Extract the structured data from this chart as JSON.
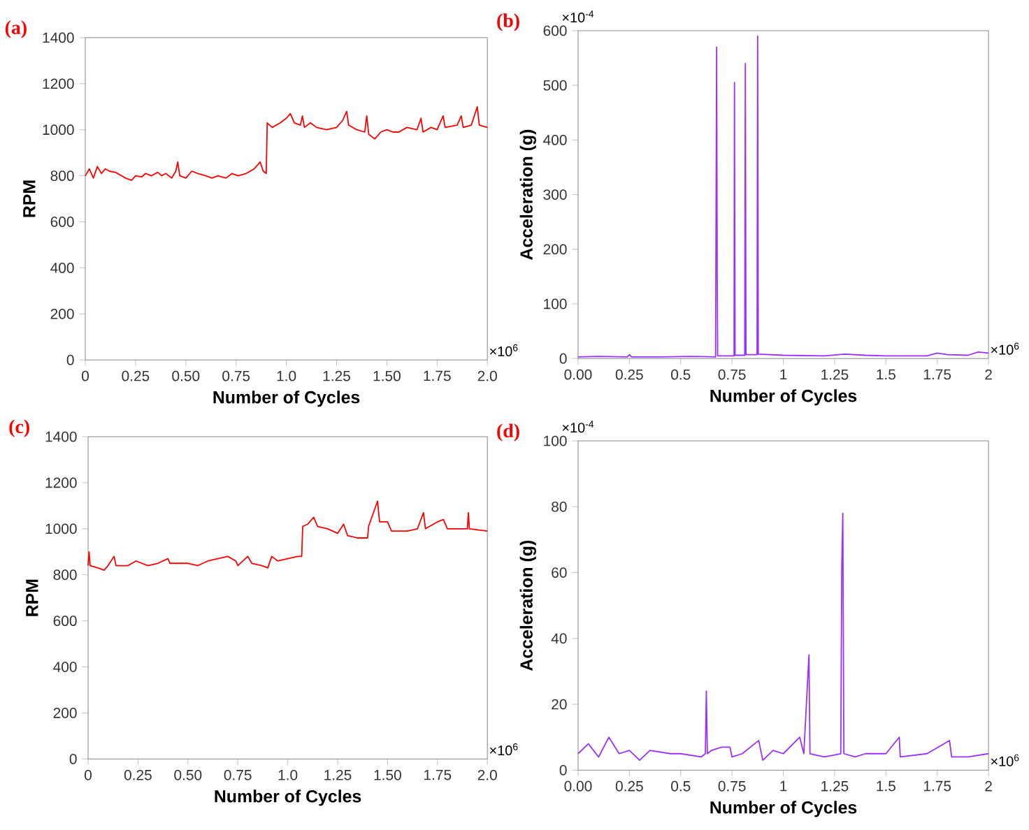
{
  "chart_data": [
    {
      "type": "line",
      "title": "(a)",
      "xlabel": "Number of Cycles",
      "ylabel": "RPM",
      "color": "#ff0000",
      "xlim": [
        0,
        2
      ],
      "xticks": [
        0,
        0.25,
        {
          "value": 0.5,
          "label": "0.50"
        },
        0.75,
        {
          "value": 1,
          "label": "1.0"
        },
        1.25,
        {
          "value": 1.5,
          "label": "1.50"
        },
        1.75,
        {
          "value": 2,
          "label": "2.0"
        }
      ],
      "ylim": [
        0,
        1400
      ],
      "yticks": [
        0,
        200,
        400,
        600,
        800,
        1000,
        1200,
        1400
      ],
      "annotations": [
        "×10$^{6}$"
      ],
      "x": [
        0,
        0.02,
        0.04,
        0.06,
        0.08,
        0.1,
        0.12,
        0.15,
        0.18,
        0.2,
        0.23,
        0.25,
        0.28,
        0.3,
        0.33,
        0.36,
        0.38,
        0.4,
        0.43,
        0.45,
        0.46,
        0.47,
        0.5,
        0.53,
        0.56,
        0.6,
        0.63,
        0.66,
        0.7,
        0.73,
        0.76,
        0.8,
        0.84,
        0.87,
        0.885,
        0.9,
        0.905,
        0.93,
        0.97,
        1.0,
        1.02,
        1.04,
        1.07,
        1.08,
        1.09,
        1.12,
        1.15,
        1.2,
        1.25,
        1.28,
        1.3,
        1.31,
        1.35,
        1.39,
        1.4,
        1.41,
        1.44,
        1.47,
        1.5,
        1.53,
        1.56,
        1.6,
        1.65,
        1.67,
        1.68,
        1.72,
        1.75,
        1.78,
        1.79,
        1.85,
        1.87,
        1.88,
        1.92,
        1.95,
        1.96,
        2.0
      ],
      "values": [
        800,
        830,
        790,
        840,
        810,
        830,
        820,
        815,
        800,
        790,
        780,
        800,
        795,
        810,
        800,
        815,
        800,
        810,
        790,
        820,
        860,
        800,
        790,
        820,
        810,
        800,
        790,
        800,
        790,
        810,
        800,
        810,
        830,
        860,
        820,
        810,
        1030,
        1010,
        1030,
        1050,
        1070,
        1030,
        1020,
        1060,
        1010,
        1030,
        1010,
        1000,
        1010,
        1040,
        1080,
        1020,
        1000,
        990,
        1060,
        980,
        960,
        990,
        1000,
        990,
        990,
        1010,
        1000,
        1050,
        990,
        1010,
        1000,
        1060,
        1010,
        1020,
        1060,
        1010,
        1020,
        1100,
        1020,
        1010
      ]
    },
    {
      "type": "line",
      "title": "(b)",
      "xlabel": "Number of Cycles",
      "ylabel": "Acceleration (g)",
      "color": "#9b30ff",
      "xlim": [
        0,
        2
      ],
      "xticks": [
        {
          "value": 0,
          "label": "0.00"
        },
        0.25,
        0.5,
        0.75,
        1,
        1.25,
        1.5,
        1.75,
        2
      ],
      "ylim": [
        0,
        600
      ],
      "yticks": [
        0,
        100,
        200,
        300,
        400,
        500,
        600
      ],
      "annotations": [
        "×10$^{-4}$",
        "×10$^{6}$"
      ],
      "x": [
        0,
        0.1,
        0.24,
        0.25,
        0.26,
        0.4,
        0.55,
        0.67,
        0.675,
        0.678,
        0.68,
        0.76,
        0.762,
        0.765,
        0.812,
        0.815,
        0.818,
        0.872,
        0.875,
        0.878,
        1.0,
        1.2,
        1.3,
        1.4,
        1.5,
        1.7,
        1.75,
        1.8,
        1.9,
        1.95,
        2.0
      ],
      "values": [
        3,
        4,
        3,
        7,
        3,
        3,
        4,
        3,
        570,
        150,
        5,
        5,
        505,
        6,
        6,
        540,
        7,
        7,
        590,
        8,
        6,
        5,
        8,
        6,
        5,
        5,
        10,
        7,
        6,
        12,
        10
      ]
    },
    {
      "type": "line",
      "title": "(c)",
      "xlabel": "Number of Cycles",
      "ylabel": "RPM",
      "color": "#ff0000",
      "xlim": [
        0,
        2
      ],
      "xticks": [
        0,
        0.25,
        {
          "value": 0.5,
          "label": "0.50"
        },
        0.75,
        {
          "value": 1,
          "label": "1.0"
        },
        1.25,
        {
          "value": 1.5,
          "label": "1.50"
        },
        1.75,
        {
          "value": 2,
          "label": "2.0"
        }
      ],
      "ylim": [
        0,
        1400
      ],
      "yticks": [
        0,
        200,
        400,
        600,
        800,
        1000,
        1200,
        1400
      ],
      "annotations": [
        "×10$^{6}$"
      ],
      "x": [
        0,
        0.005,
        0.01,
        0.05,
        0.08,
        0.1,
        0.13,
        0.14,
        0.2,
        0.24,
        0.3,
        0.35,
        0.4,
        0.41,
        0.5,
        0.55,
        0.6,
        0.65,
        0.7,
        0.74,
        0.75,
        0.8,
        0.82,
        0.87,
        0.9,
        0.92,
        0.95,
        1.0,
        1.05,
        1.07,
        1.075,
        1.1,
        1.13,
        1.15,
        1.2,
        1.25,
        1.28,
        1.3,
        1.35,
        1.4,
        1.405,
        1.45,
        1.46,
        1.5,
        1.52,
        1.6,
        1.65,
        1.68,
        1.69,
        1.75,
        1.78,
        1.8,
        1.9,
        1.905,
        1.91,
        2.0
      ],
      "values": [
        840,
        900,
        840,
        830,
        820,
        840,
        880,
        840,
        840,
        860,
        840,
        850,
        870,
        850,
        850,
        840,
        860,
        870,
        880,
        860,
        840,
        880,
        850,
        840,
        830,
        880,
        860,
        870,
        880,
        880,
        1010,
        1020,
        1050,
        1010,
        1000,
        980,
        1020,
        970,
        960,
        960,
        1010,
        1120,
        1030,
        1030,
        990,
        990,
        1000,
        1070,
        1000,
        1030,
        1040,
        1000,
        1000,
        1070,
        1000,
        990
      ]
    },
    {
      "type": "line",
      "title": "(d)",
      "xlabel": "Number of Cycles",
      "ylabel": "Acceleration (g)",
      "color": "#9b30ff",
      "xlim": [
        0,
        2
      ],
      "xticks": [
        {
          "value": 0,
          "label": "0.00"
        },
        0.25,
        0.5,
        0.75,
        1,
        1.25,
        1.5,
        1.75,
        2
      ],
      "ylim": [
        0,
        100
      ],
      "yticks": [
        0,
        20,
        40,
        60,
        80,
        100
      ],
      "annotations": [
        "×10$^{-4}$",
        "×10$^{6}$"
      ],
      "x": [
        0,
        0.05,
        0.1,
        0.15,
        0.2,
        0.25,
        0.3,
        0.35,
        0.45,
        0.5,
        0.6,
        0.62,
        0.625,
        0.63,
        0.65,
        0.7,
        0.74,
        0.75,
        0.8,
        0.88,
        0.9,
        0.95,
        1.0,
        1.08,
        1.1,
        1.125,
        1.13,
        1.2,
        1.28,
        1.285,
        1.29,
        1.295,
        1.35,
        1.4,
        1.5,
        1.565,
        1.57,
        1.7,
        1.81,
        1.82,
        1.9,
        2.0
      ],
      "values": [
        5,
        8,
        4,
        10,
        5,
        6,
        3,
        6,
        5,
        5,
        4,
        5,
        24,
        5,
        6,
        7,
        7,
        4,
        5,
        9,
        3,
        6,
        5,
        10,
        5,
        35,
        5,
        4,
        5,
        62,
        78,
        5,
        4,
        5,
        5,
        10,
        4,
        5,
        9,
        4,
        4,
        5
      ]
    }
  ]
}
